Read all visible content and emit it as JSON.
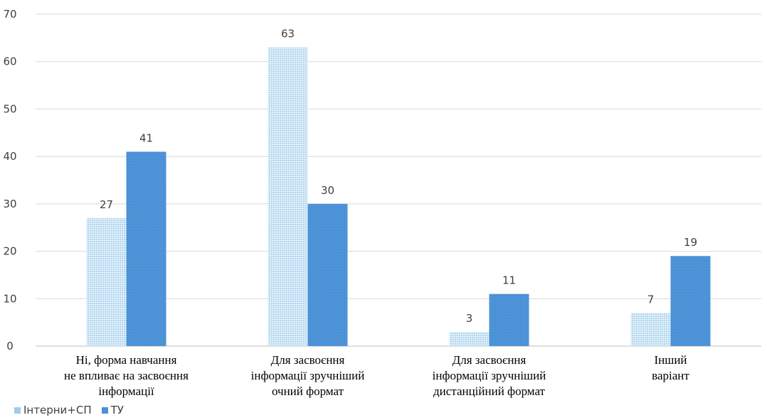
{
  "chart_data": {
    "type": "bar",
    "categories": [
      [
        "Ні, форма навчання",
        "не впливає на засвоєння",
        "інформації"
      ],
      [
        "Для засвоєння",
        "інформації зручніший",
        "очний формат"
      ],
      [
        "Для засвоєння",
        "інформації зручніший",
        "дистанційний формат"
      ],
      [
        "Інший",
        "варіант"
      ]
    ],
    "series": [
      {
        "name": "Інтерни+СП",
        "values": [
          27,
          63,
          3,
          7
        ],
        "color": "#9fd0ee"
      },
      {
        "name": "ТУ",
        "values": [
          41,
          30,
          11,
          19
        ],
        "color": "#4b91d6"
      }
    ],
    "yticks": [
      "0",
      "10",
      "20",
      "30",
      "40",
      "50",
      "60",
      "70"
    ],
    "ylim": [
      0,
      70
    ],
    "grid": true,
    "legend_position": "bottom-left"
  }
}
